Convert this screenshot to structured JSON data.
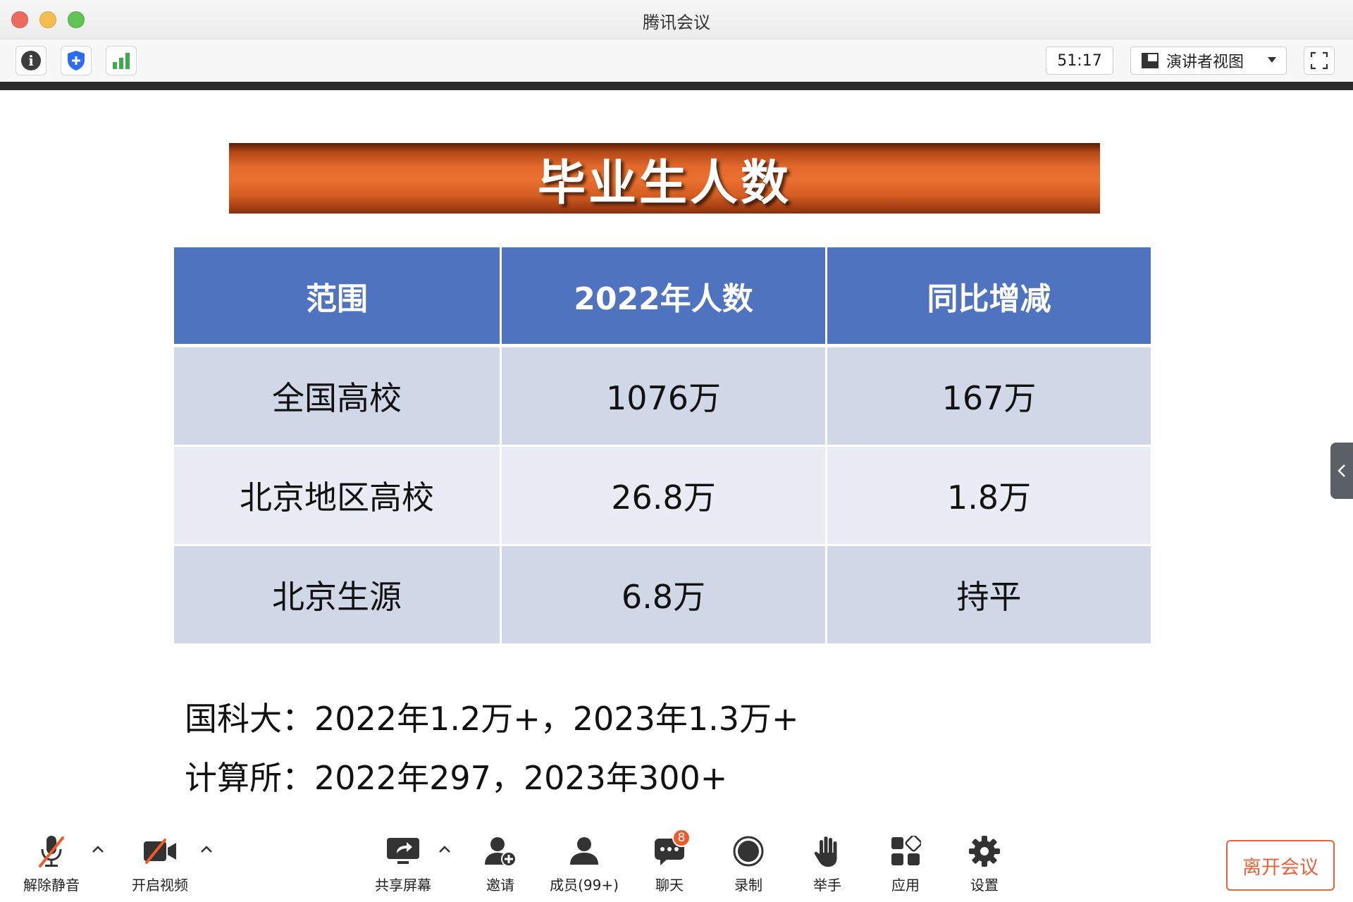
{
  "window": {
    "title": "腾讯会议"
  },
  "toolbar": {
    "info_icon": "info-icon",
    "security_icon": "shield-icon",
    "signal_icon": "signal-bars-icon",
    "timer": "51:17",
    "view_selector": {
      "selected": "演讲者视图",
      "icon": "speaker-layout-icon"
    },
    "fullscreen_icon": "fullscreen-icon"
  },
  "slide": {
    "title": "毕业生人数",
    "table": {
      "headers": [
        "范围",
        "2022年人数",
        "同比增减"
      ],
      "rows": [
        [
          "全国高校",
          "1076万",
          "167万"
        ],
        [
          "北京地区高校",
          "26.8万",
          "1.8万"
        ],
        [
          "北京生源",
          "6.8万",
          "持平"
        ]
      ]
    },
    "notes": [
      "国科大：2022年1.2万+，2023年1.3万+",
      "计算所：2022年297，2023年300+"
    ]
  },
  "controls": {
    "unmute": "解除静音",
    "start_video": "开启视频",
    "share_screen": "共享屏幕",
    "invite": "邀请",
    "members": "成员(99+)",
    "chat": "聊天",
    "chat_badge": "8",
    "record": "录制",
    "raise_hand": "举手",
    "apps": "应用",
    "settings": "设置",
    "leave": "离开会议"
  },
  "colors": {
    "banner_orange": "#e36a2c",
    "table_header": "#4f73be",
    "row_dark": "#d0d7e7",
    "row_light": "#e9ecf4",
    "leave_accent": "#e8623a",
    "mute_slash": "#f05a2a"
  }
}
